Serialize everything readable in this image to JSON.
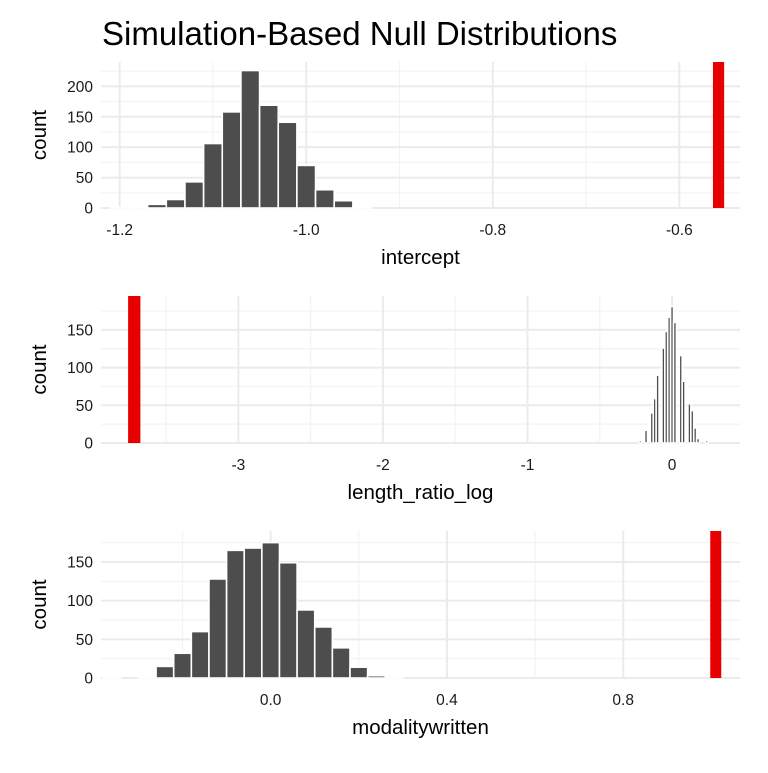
{
  "title": "Simulation-Based Null Distributions",
  "colors": {
    "bar": "#4d4d4d",
    "observed": "#e60000",
    "grid_major": "#ebebeb",
    "grid_minor": "#f3f3f3",
    "text": "#000000",
    "tick_text": "#1a1a1a"
  },
  "chart_data": [
    {
      "type": "bar",
      "title": "",
      "xlabel": "intercept",
      "ylabel": "count",
      "xlim": [
        -1.22,
        -0.535
      ],
      "ylim": [
        0,
        240
      ],
      "xticks": [
        -1.2,
        -1.0,
        -0.8,
        -0.6
      ],
      "xtick_labels": [
        "-1.2",
        "-1.0",
        "-0.8",
        "-0.6"
      ],
      "xminor": [
        -1.1,
        -0.9,
        -0.7
      ],
      "yticks": [
        0,
        50,
        100,
        150,
        200
      ],
      "ytick_labels": [
        "0",
        "50",
        "100",
        "150",
        "200"
      ],
      "bin_width": 0.02,
      "bins": [
        {
          "x": -1.2,
          "count": 1
        },
        {
          "x": -1.18,
          "count": 2
        },
        {
          "x": -1.16,
          "count": 6
        },
        {
          "x": -1.14,
          "count": 14
        },
        {
          "x": -1.12,
          "count": 43
        },
        {
          "x": -1.1,
          "count": 106
        },
        {
          "x": -1.08,
          "count": 158
        },
        {
          "x": -1.06,
          "count": 226
        },
        {
          "x": -1.04,
          "count": 169
        },
        {
          "x": -1.02,
          "count": 141
        },
        {
          "x": -1.0,
          "count": 70
        },
        {
          "x": -0.98,
          "count": 30
        },
        {
          "x": -0.96,
          "count": 12
        },
        {
          "x": -0.94,
          "count": 1
        }
      ],
      "observed": {
        "x": -0.558,
        "width": 0.012
      }
    },
    {
      "type": "bar",
      "title": "",
      "xlabel": "length_ratio_log",
      "ylabel": "count",
      "xlim": [
        -3.95,
        0.47
      ],
      "ylim": [
        0,
        195
      ],
      "xticks": [
        -3,
        -2,
        -1,
        0
      ],
      "xtick_labels": [
        "-3",
        "-2",
        "-1",
        "0"
      ],
      "xminor": [
        -3.5,
        -2.5,
        -1.5,
        -0.5
      ],
      "yticks": [
        0,
        50,
        100,
        150
      ],
      "ytick_labels": [
        "0",
        "50",
        "100",
        "150"
      ],
      "bin_width": 0.02,
      "bins": [
        {
          "x": -0.22,
          "count": 3
        },
        {
          "x": -0.18,
          "count": 17
        },
        {
          "x": -0.14,
          "count": 40
        },
        {
          "x": -0.12,
          "count": 59
        },
        {
          "x": -0.1,
          "count": 90
        },
        {
          "x": -0.06,
          "count": 126
        },
        {
          "x": -0.04,
          "count": 148
        },
        {
          "x": -0.02,
          "count": 167
        },
        {
          "x": 0.0,
          "count": 181
        },
        {
          "x": 0.02,
          "count": 160
        },
        {
          "x": 0.06,
          "count": 116
        },
        {
          "x": 0.08,
          "count": 82
        },
        {
          "x": 0.12,
          "count": 52
        },
        {
          "x": 0.14,
          "count": 43
        },
        {
          "x": 0.16,
          "count": 20
        },
        {
          "x": 0.18,
          "count": 6
        },
        {
          "x": 0.24,
          "count": 3
        }
      ],
      "observed": {
        "x": -3.72,
        "width": 0.085
      }
    },
    {
      "type": "bar",
      "title": "",
      "xlabel": "modalitywritten",
      "ylabel": "count",
      "xlim": [
        -0.385,
        1.065
      ],
      "ylim": [
        0,
        190
      ],
      "xticks": [
        0.0,
        0.4,
        0.8
      ],
      "xtick_labels": [
        "0.0",
        "0.4",
        "0.8"
      ],
      "xminor": [
        -0.2,
        0.2,
        0.6,
        1.0
      ],
      "yticks": [
        0,
        50,
        100,
        150
      ],
      "ytick_labels": [
        "0",
        "50",
        "100",
        "150"
      ],
      "bin_width": 0.04,
      "bins": [
        {
          "x": -0.36,
          "count": 1
        },
        {
          "x": -0.28,
          "count": 2
        },
        {
          "x": -0.24,
          "count": 15
        },
        {
          "x": -0.2,
          "count": 32
        },
        {
          "x": -0.16,
          "count": 60
        },
        {
          "x": -0.12,
          "count": 128
        },
        {
          "x": -0.08,
          "count": 165
        },
        {
          "x": -0.04,
          "count": 168
        },
        {
          "x": 0.0,
          "count": 175
        },
        {
          "x": 0.04,
          "count": 149
        },
        {
          "x": 0.08,
          "count": 88
        },
        {
          "x": 0.12,
          "count": 66
        },
        {
          "x": 0.16,
          "count": 39
        },
        {
          "x": 0.2,
          "count": 14
        },
        {
          "x": 0.24,
          "count": 3
        },
        {
          "x": 0.28,
          "count": 1
        }
      ],
      "observed": {
        "x": 1.01,
        "width": 0.025
      }
    }
  ]
}
